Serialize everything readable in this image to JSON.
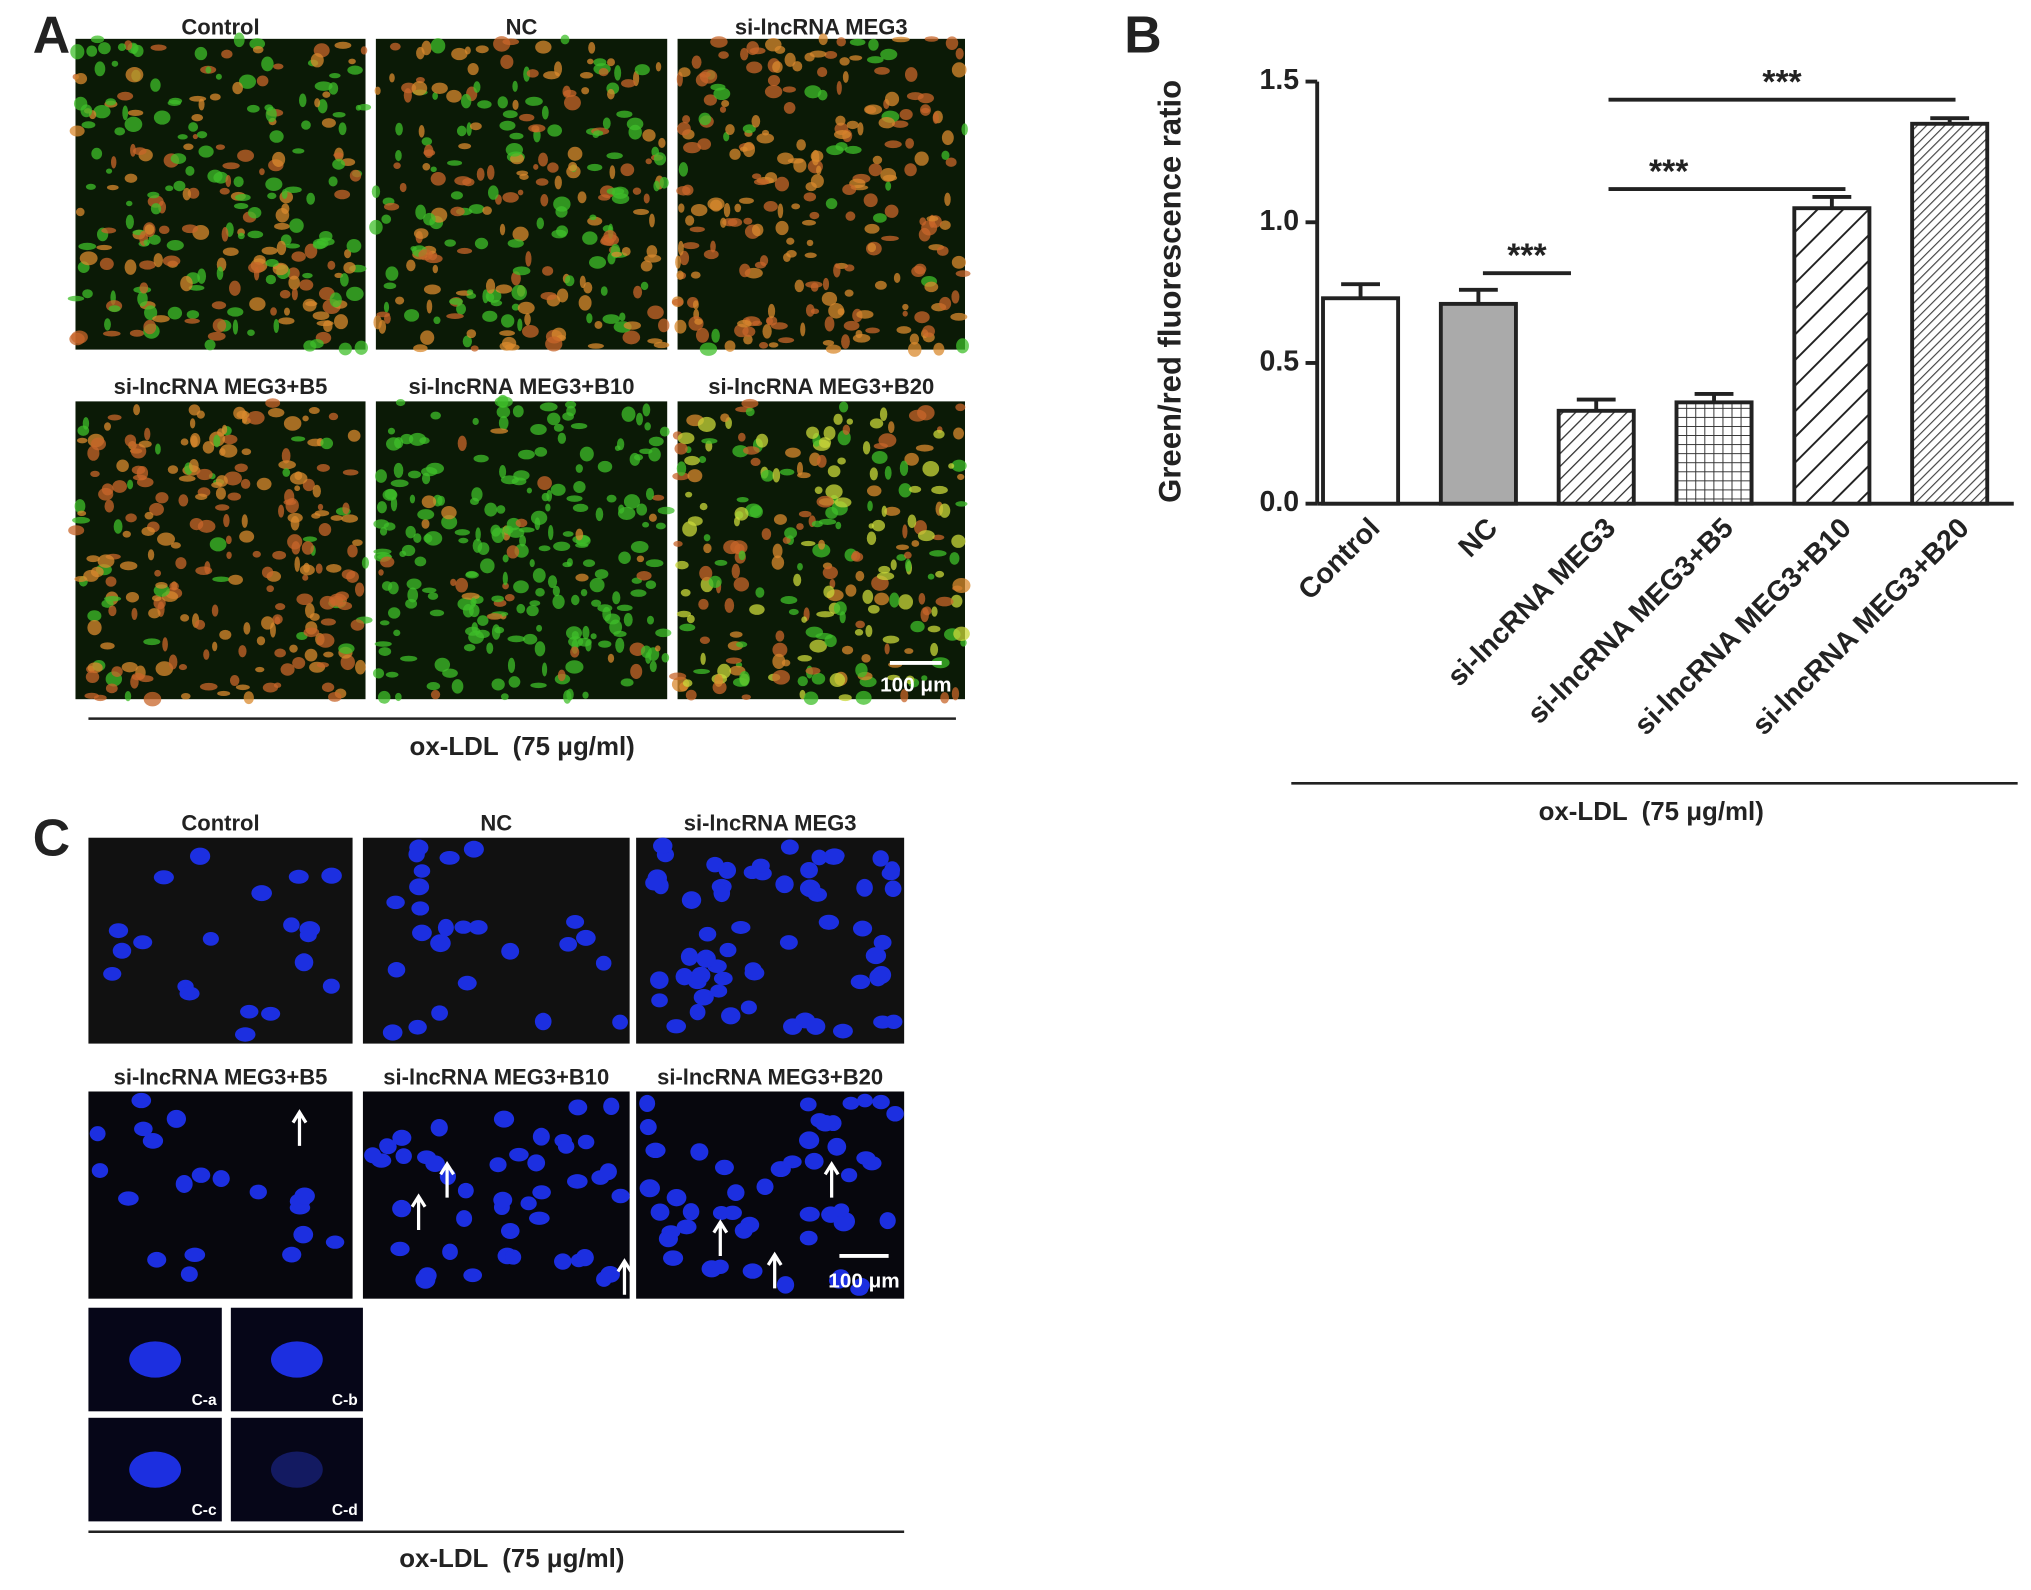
{
  "panel_a": {
    "label": "A",
    "images": [
      "Control",
      "NC",
      "si-lncRNA MEG3",
      "si-lncRNA MEG3+B5",
      "si-lncRNA MEG3+B10",
      "si-lncRNA MEG3+B20"
    ],
    "scale_bar": "100 μm",
    "treatment": "ox-LDL  (75 μg/ml)"
  },
  "chart_data": {
    "type": "bar",
    "panel_label": "B",
    "y_label": "Green/red fluorescence ratio",
    "categories": [
      "Control",
      "NC",
      "si-lncRNA MEG3",
      "si-lncRNA MEG3+B5",
      "si-lncRNA MEG3+B10",
      "si-lncRNA MEG3+B20"
    ],
    "values": [
      0.73,
      0.71,
      0.33,
      0.36,
      1.05,
      1.35
    ],
    "errors": [
      0.05,
      0.05,
      0.04,
      0.03,
      0.04,
      0.02
    ],
    "ylim": [
      0,
      1.5
    ],
    "yticks": [
      {
        "value": 0,
        "label": "0.0"
      },
      0.5,
      {
        "value": 1,
        "label": "1.0"
      },
      1.5
    ],
    "annotations": [
      "***",
      "***",
      "***"
    ],
    "treatment": "ox-LDL  (75 μg/ml)"
  },
  "panel_c": {
    "label": "C",
    "images": [
      "Control",
      "NC",
      "si-lncRNA MEG3",
      "si-lncRNA MEG3+B5",
      "si-lncRNA MEG3+B10",
      "si-lncRNA MEG3+B20"
    ],
    "insets": [
      "C-a",
      "C-b",
      "C-c",
      "C-d"
    ],
    "scale_bar": "100 μm",
    "treatment": "ox-LDL  (75 μg/ml)"
  }
}
